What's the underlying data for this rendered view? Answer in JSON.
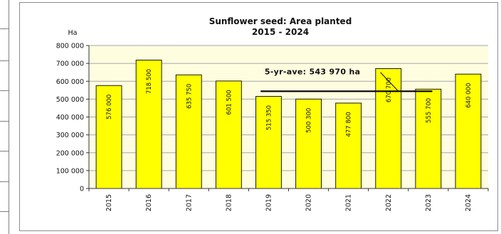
{
  "chart_data": {
    "type": "bar",
    "title": "Sunflower seed: Area planted",
    "subtitle": "2015 - 2024",
    "ylabel": "Ha",
    "xlabel": "",
    "ylim": [
      0,
      800000
    ],
    "yticks": [
      "800 000",
      "700 000",
      "600 000",
      "500 000",
      "400 000",
      "300 000",
      "200 000",
      "100 000",
      "0"
    ],
    "categories": [
      "2015",
      "2016",
      "2017",
      "2018",
      "2019",
      "2020",
      "2021",
      "2022",
      "2023",
      "2024"
    ],
    "values": [
      576000,
      718500,
      635750,
      601500,
      515350,
      500300,
      477800,
      670700,
      555700,
      640000
    ],
    "value_labels": [
      "576 000",
      "718 500",
      "635 750",
      "601 500",
      "515 350",
      "500 300",
      "477 800",
      "670 700",
      "555 700",
      "640 000"
    ],
    "average": {
      "label": "5-yr-ave: 543 970 ha",
      "value": 543970
    },
    "bar_color": "#ffff00",
    "plot_background": "#fffde0",
    "grid": true,
    "legend": "none"
  }
}
